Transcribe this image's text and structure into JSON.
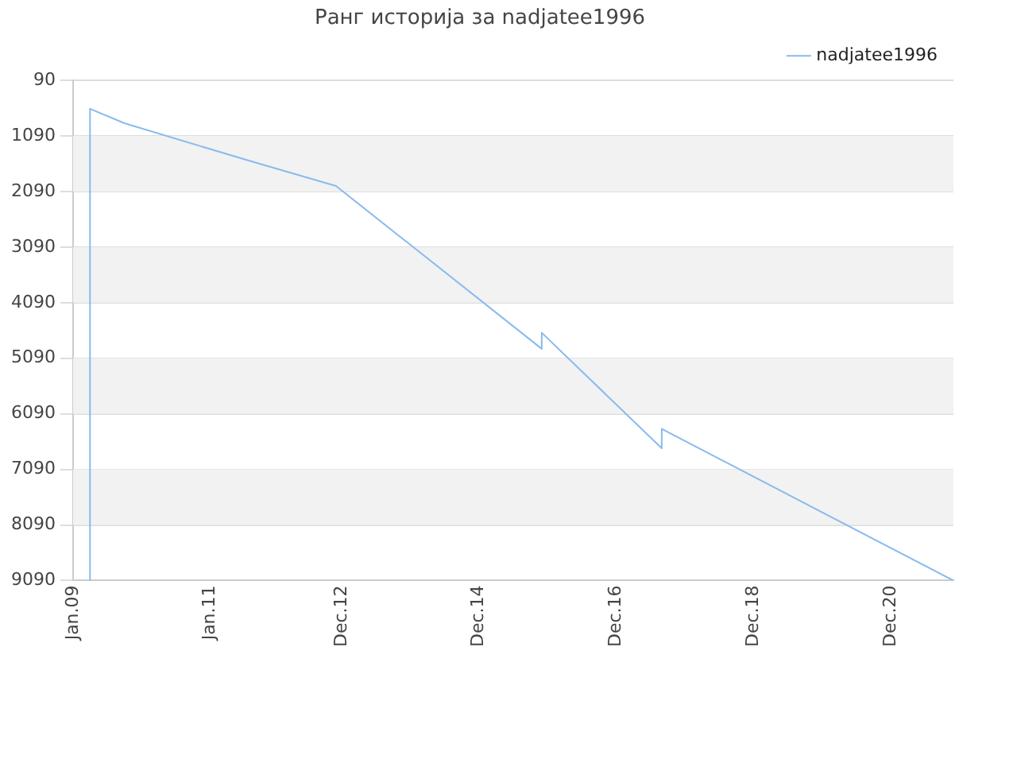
{
  "chart_data": {
    "type": "line",
    "title": "Ранг историја за nadjatee1996",
    "series": [
      {
        "name": "nadjatee1996",
        "color": "#88bbee",
        "x": [
          "2009-04",
          "2009-04",
          "2009-10",
          "2011-08",
          "2012-11",
          "2015-11",
          "2015-11",
          "2017-08",
          "2017-08",
          "2021-11"
        ],
        "values": [
          9090,
          600,
          860,
          1540,
          1990,
          4920,
          4630,
          6710,
          6360,
          9090
        ]
      }
    ],
    "xlim": [
      "2009-01",
      "2021-11"
    ],
    "xticks": [
      {
        "value": "2009-01",
        "label": "Jan.09"
      },
      {
        "value": "2011-01",
        "label": "Jan.11"
      },
      {
        "value": "2012-12",
        "label": "Dec.12"
      },
      {
        "value": "2014-12",
        "label": "Dec.14"
      },
      {
        "value": "2016-12",
        "label": "Dec.16"
      },
      {
        "value": "2018-12",
        "label": "Dec.18"
      },
      {
        "value": "2020-12",
        "label": "Dec.20"
      }
    ],
    "ylim": [
      9090,
      90
    ],
    "yticks": [
      90,
      1090,
      2090,
      3090,
      4090,
      5090,
      6090,
      7090,
      8090,
      9090
    ],
    "grid": "y",
    "legend": "top right",
    "marker": "none",
    "line_style": "solid"
  }
}
